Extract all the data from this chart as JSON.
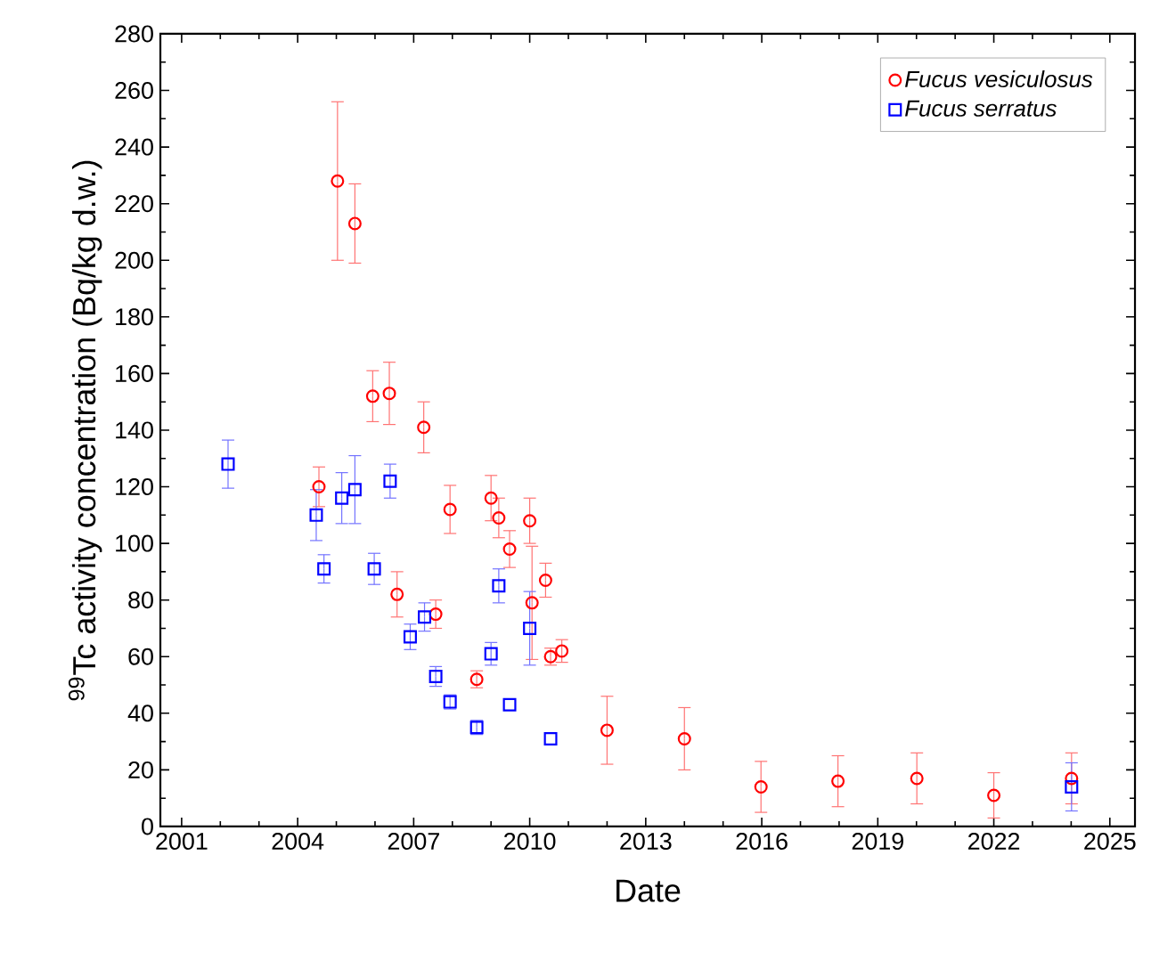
{
  "chart_data": {
    "type": "scatter",
    "xlabel": "Date",
    "ylabel": "$^{99}$Tc activity concentration (Bq/kg d.w.)",
    "xlim": [
      2000.45,
      2025.65
    ],
    "ylim": [
      0,
      280
    ],
    "xticks": [
      2001,
      2004,
      2007,
      2010,
      2013,
      2016,
      2019,
      2022,
      2025
    ],
    "yticks": [
      0,
      20,
      40,
      60,
      80,
      100,
      120,
      140,
      160,
      180,
      200,
      220,
      240,
      260,
      280
    ],
    "legend": "top right",
    "grid": false,
    "series": [
      {
        "name": "Fucus vesiculosus",
        "color": "#ff0000",
        "marker": "circle",
        "x": [
          2004.55,
          2005.03,
          2005.48,
          2005.94,
          2006.37,
          2007.26,
          2007.94,
          2006.57,
          2007.57,
          2008.63,
          2009.0,
          2009.2,
          2009.48,
          2010.0,
          2010.06,
          2010.41,
          2010.54,
          2010.83,
          2012.0,
          2014.0,
          2015.98,
          2017.97,
          2020.01,
          2022.0,
          2024.01
        ],
        "values": [
          120,
          228,
          213,
          152,
          153,
          141,
          112,
          82,
          75,
          52,
          116,
          109,
          98,
          108,
          79,
          87,
          60,
          62,
          34,
          31,
          14,
          16,
          17,
          11,
          17
        ],
        "errors": [
          7,
          28,
          14,
          9,
          11,
          9,
          8.5,
          8,
          5,
          3,
          8,
          7,
          6.5,
          8,
          20,
          6,
          3,
          4,
          12,
          11,
          9,
          9,
          9,
          8,
          9
        ]
      },
      {
        "name": "Fucus serratus",
        "color": "#0000ff",
        "marker": "square",
        "x": [
          2002.2,
          2004.48,
          2004.68,
          2005.14,
          2005.48,
          2006.39,
          2005.98,
          2006.91,
          2007.28,
          2007.57,
          2007.94,
          2008.63,
          2009.0,
          2009.2,
          2009.48,
          2010.0,
          2010.54,
          2024.01
        ],
        "values": [
          128,
          110,
          91,
          116,
          119,
          122,
          91,
          67,
          74,
          53,
          44,
          35,
          61,
          85,
          43,
          70,
          31,
          14
        ],
        "errors": [
          8.5,
          9,
          5,
          9,
          12,
          6,
          5.5,
          4.5,
          5,
          3.5,
          2.5,
          2.5,
          4,
          6,
          null,
          13,
          null,
          8.5
        ]
      }
    ]
  }
}
